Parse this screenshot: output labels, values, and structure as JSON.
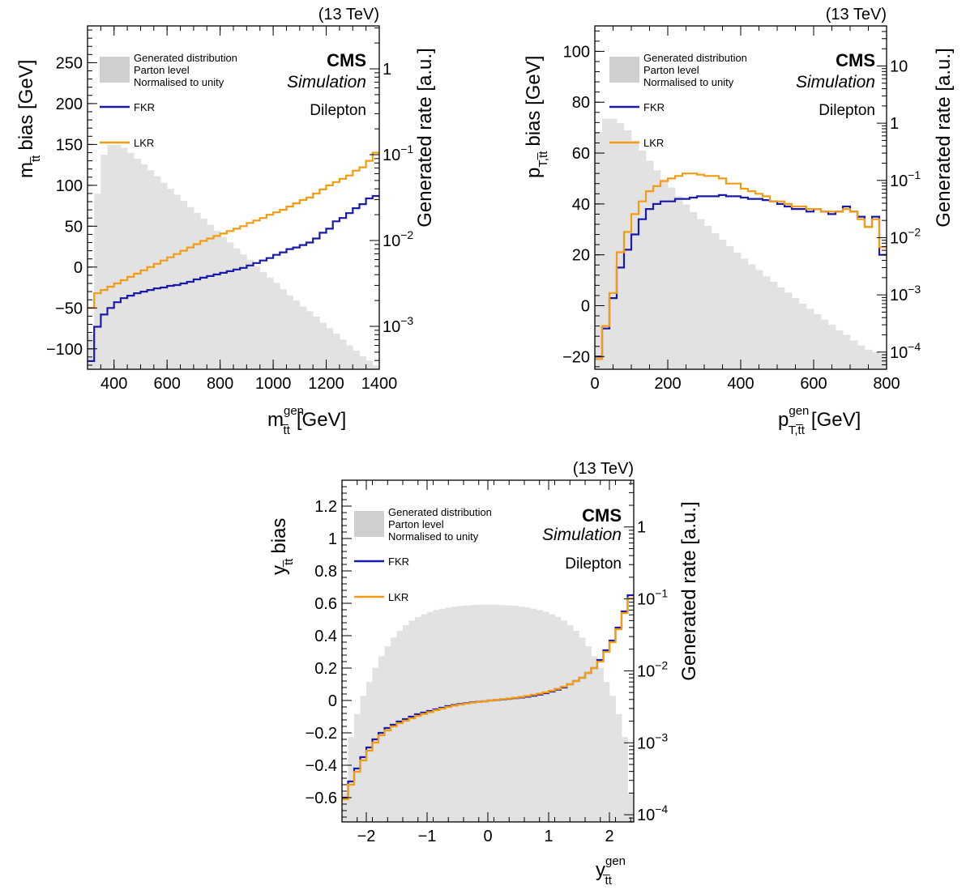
{
  "common": {
    "energy": "(13 TeV)",
    "experiment": "CMS",
    "simulation": "Simulation",
    "channel": "Dilepton",
    "right_axis_label": "Generated rate [a.u.]",
    "legend": {
      "generated": [
        "Generated distribution",
        "Parton level",
        "Normalised to unity"
      ],
      "fkr": "FKR",
      "lkr": "LKR"
    }
  },
  "colors": {
    "fkr": "#1a1aaa",
    "lkr": "#f39c12",
    "generated": "#e2e2e2",
    "legend_box": "#cfcfcf"
  },
  "chart_data": [
    {
      "type": "line",
      "name": "mtt",
      "xlabel": "m^{gen}_{t̅t} [GeV]",
      "xlabel_main": "m",
      "xlabel_sup": "gen",
      "xlabel_sub": "t̅t",
      "xlabel_unit": "[GeV]",
      "ylabel_main": "m",
      "ylabel_sub": "t̅t",
      "ylabel_rest": "bias [GeV]",
      "xlim": [
        300,
        1400
      ],
      "ylim": [
        -125,
        295
      ],
      "xticks": [
        400,
        600,
        800,
        1000,
        1200,
        1400
      ],
      "yticks": [
        -100,
        -50,
        0,
        50,
        100,
        150,
        200,
        250
      ],
      "ytick_labels": [
        "−100",
        "−50",
        "0",
        "50",
        "100",
        "150",
        "200",
        "250"
      ],
      "right_axis": {
        "log_range": [
          -3.5,
          0.5
        ],
        "ticks": [
          {
            "exp": -3,
            "label": "10",
            "sup": "−3"
          },
          {
            "exp": -2,
            "label": "10",
            "sup": "−2"
          },
          {
            "exp": -1,
            "label": "10",
            "sup": "−1"
          },
          {
            "exp": 0,
            "label": "1",
            "sup": ""
          }
        ]
      },
      "bin_edges": [
        300,
        325,
        350,
        375,
        400,
        425,
        450,
        475,
        500,
        525,
        550,
        575,
        600,
        625,
        650,
        675,
        700,
        725,
        750,
        775,
        800,
        825,
        850,
        875,
        900,
        925,
        950,
        975,
        1000,
        1025,
        1050,
        1075,
        1100,
        1125,
        1150,
        1175,
        1200,
        1225,
        1250,
        1275,
        1300,
        1325,
        1350,
        1375,
        1400
      ],
      "generated": [
        0.0008,
        0.035,
        0.1,
        0.13,
        0.13,
        0.12,
        0.105,
        0.09,
        0.077,
        0.066,
        0.056,
        0.047,
        0.04,
        0.034,
        0.029,
        0.0245,
        0.021,
        0.018,
        0.0152,
        0.013,
        0.011,
        0.0095,
        0.0081,
        0.0069,
        0.0059,
        0.005,
        0.0043,
        0.0037,
        0.0032,
        0.0027,
        0.0023,
        0.002,
        0.0017,
        0.0015,
        0.0013,
        0.0011,
        0.00095,
        0.00082,
        0.0007,
        0.0006,
        0.00052,
        0.00045,
        0.0004,
        0.00035
      ],
      "series": [
        {
          "name": "FKR",
          "values": [
            -115,
            -73,
            -58,
            -50,
            -43,
            -38,
            -35,
            -32,
            -30,
            -28,
            -26,
            -25,
            -23,
            -22,
            -20,
            -18,
            -15,
            -13,
            -11,
            -9,
            -7,
            -5,
            -3,
            -1,
            2,
            5,
            8,
            11,
            15,
            18,
            22,
            24,
            27,
            30,
            35,
            42,
            47,
            56,
            60,
            66,
            72,
            77,
            84,
            87
          ]
        },
        {
          "name": "LKR",
          "values": [
            -50,
            -32,
            -28,
            -24,
            -20,
            -16,
            -12,
            -8,
            -4,
            0,
            4,
            8,
            12,
            16,
            20,
            24,
            28,
            32,
            35,
            38,
            41,
            44,
            47,
            50,
            54,
            57,
            60,
            64,
            67,
            70,
            74,
            78,
            82,
            85,
            90,
            95,
            100,
            104,
            108,
            112,
            118,
            122,
            130,
            140
          ]
        }
      ]
    },
    {
      "type": "line",
      "name": "pt",
      "xlabel": "p^{gen}_{T,t̅t} [GeV]",
      "xlabel_main": "p",
      "xlabel_sup": "gen",
      "xlabel_sub": "T,t̅t",
      "xlabel_unit": "[GeV]",
      "ylabel_main": "p",
      "ylabel_sub": "T,t̅t",
      "ylabel_rest": "bias [GeV]",
      "xlim": [
        0,
        800
      ],
      "ylim": [
        -25,
        110
      ],
      "xticks": [
        0,
        200,
        400,
        600,
        800
      ],
      "yticks": [
        -20,
        0,
        20,
        40,
        60,
        80,
        100
      ],
      "ytick_labels": [
        "−20",
        "0",
        "20",
        "40",
        "60",
        "80",
        "100"
      ],
      "right_axis": {
        "log_range": [
          -4.3,
          1.7
        ],
        "ticks": [
          {
            "exp": -4,
            "label": "10",
            "sup": "−4"
          },
          {
            "exp": -3,
            "label": "10",
            "sup": "−3"
          },
          {
            "exp": -2,
            "label": "10",
            "sup": "−2"
          },
          {
            "exp": -1,
            "label": "10",
            "sup": "−1"
          },
          {
            "exp": 0,
            "label": "1",
            "sup": ""
          },
          {
            "exp": 1,
            "label": "10",
            "sup": ""
          }
        ]
      },
      "bin_edges": [
        0,
        20,
        40,
        60,
        80,
        100,
        120,
        140,
        160,
        180,
        200,
        220,
        240,
        260,
        280,
        300,
        320,
        340,
        360,
        380,
        400,
        420,
        440,
        460,
        480,
        500,
        520,
        540,
        560,
        580,
        600,
        620,
        640,
        660,
        680,
        700,
        720,
        740,
        760,
        780,
        800
      ],
      "generated": [
        0.7,
        1.2,
        1.2,
        1.0,
        0.75,
        0.5,
        0.33,
        0.22,
        0.15,
        0.105,
        0.075,
        0.053,
        0.038,
        0.028,
        0.021,
        0.016,
        0.012,
        0.0092,
        0.0071,
        0.0055,
        0.0043,
        0.0034,
        0.0027,
        0.0021,
        0.0017,
        0.00135,
        0.0011,
        0.00088,
        0.0007,
        0.00057,
        0.00046,
        0.00037,
        0.0003,
        0.00024,
        0.0002,
        0.00016,
        0.00013,
        0.00011,
        0.0001,
        9e-05
      ],
      "series": [
        {
          "name": "FKR",
          "values": [
            -20,
            -9,
            3,
            15,
            22,
            28,
            34,
            38,
            40,
            41,
            41,
            42,
            42,
            42.5,
            43,
            43,
            43,
            43.5,
            43,
            43,
            42.5,
            42,
            42,
            41.5,
            41,
            40,
            39,
            38,
            38,
            37,
            38,
            37,
            36,
            37,
            39,
            37,
            35,
            31,
            35,
            20
          ]
        },
        {
          "name": "LKR",
          "values": [
            -21,
            -8,
            5,
            21,
            29,
            36,
            41,
            45,
            47,
            49,
            50,
            51,
            52,
            52,
            51.5,
            51,
            51,
            50,
            48,
            48,
            46,
            45,
            44,
            43,
            41,
            41,
            40,
            39,
            39,
            38,
            38,
            37,
            37,
            37,
            38,
            37,
            34,
            31,
            34,
            23
          ]
        }
      ]
    },
    {
      "type": "line",
      "name": "y",
      "xlabel": "y^{gen}_{t̅t}",
      "xlabel_main": "y",
      "xlabel_sup": "gen",
      "xlabel_sub": "t̅t",
      "xlabel_unit": "",
      "ylabel_main": "y",
      "ylabel_sub": "t̅t",
      "ylabel_rest": "bias",
      "xlim": [
        -2.4,
        2.4
      ],
      "ylim": [
        -0.75,
        1.36
      ],
      "xticks": [
        -2,
        -1,
        0,
        1,
        2
      ],
      "xtick_labels": [
        "−2",
        "−1",
        "0",
        "1",
        "2"
      ],
      "yticks": [
        -0.6,
        -0.4,
        -0.2,
        0,
        0.2,
        0.4,
        0.6,
        0.8,
        1,
        1.2
      ],
      "ytick_labels": [
        "−0.6",
        "−0.4",
        "−0.2",
        "0",
        "0.2",
        "0.4",
        "0.6",
        "0.8",
        "1",
        "1.2"
      ],
      "right_axis": {
        "log_range": [
          -4.1,
          0.65
        ],
        "ticks": [
          {
            "exp": -4,
            "label": "10",
            "sup": "−4"
          },
          {
            "exp": -3,
            "label": "10",
            "sup": "−3"
          },
          {
            "exp": -2,
            "label": "10",
            "sup": "−2"
          },
          {
            "exp": -1,
            "label": "10",
            "sup": "−1"
          },
          {
            "exp": 0,
            "label": "1",
            "sup": ""
          }
        ]
      },
      "bin_edges": [
        -2.4,
        -2.3,
        -2.2,
        -2.1,
        -2.0,
        -1.9,
        -1.8,
        -1.7,
        -1.6,
        -1.5,
        -1.4,
        -1.3,
        -1.2,
        -1.1,
        -1.0,
        -0.9,
        -0.8,
        -0.7,
        -0.6,
        -0.5,
        -0.4,
        -0.3,
        -0.2,
        -0.1,
        0.0,
        0.1,
        0.2,
        0.3,
        0.4,
        0.5,
        0.6,
        0.7,
        0.8,
        0.9,
        1.0,
        1.1,
        1.2,
        1.3,
        1.4,
        1.5,
        1.6,
        1.7,
        1.8,
        1.9,
        2.0,
        2.1,
        2.2,
        2.3,
        2.4
      ],
      "generated": [
        0.0002,
        0.0012,
        0.0025,
        0.0045,
        0.007,
        0.011,
        0.016,
        0.022,
        0.029,
        0.036,
        0.043,
        0.05,
        0.056,
        0.061,
        0.066,
        0.07,
        0.073,
        0.076,
        0.078,
        0.08,
        0.081,
        0.082,
        0.083,
        0.083,
        0.083,
        0.083,
        0.082,
        0.081,
        0.08,
        0.078,
        0.076,
        0.073,
        0.07,
        0.066,
        0.061,
        0.056,
        0.05,
        0.043,
        0.036,
        0.029,
        0.022,
        0.016,
        0.011,
        0.007,
        0.0045,
        0.0025,
        0.0012,
        0.0002
      ],
      "series": [
        {
          "name": "FKR",
          "values": [
            -0.6,
            -0.5,
            -0.42,
            -0.35,
            -0.29,
            -0.24,
            -0.2,
            -0.17,
            -0.15,
            -0.13,
            -0.115,
            -0.1,
            -0.085,
            -0.075,
            -0.065,
            -0.055,
            -0.045,
            -0.035,
            -0.028,
            -0.022,
            -0.017,
            -0.012,
            -0.008,
            -0.005,
            0.0,
            0.003,
            0.006,
            0.01,
            0.014,
            0.018,
            0.023,
            0.029,
            0.036,
            0.045,
            0.055,
            0.067,
            0.08,
            0.1,
            0.12,
            0.14,
            0.17,
            0.2,
            0.25,
            0.31,
            0.37,
            0.45,
            0.55,
            0.65
          ]
        },
        {
          "name": "LKR",
          "values": [
            -0.61,
            -0.52,
            -0.44,
            -0.37,
            -0.31,
            -0.26,
            -0.215,
            -0.185,
            -0.16,
            -0.14,
            -0.125,
            -0.11,
            -0.095,
            -0.083,
            -0.072,
            -0.06,
            -0.05,
            -0.04,
            -0.032,
            -0.025,
            -0.019,
            -0.014,
            -0.009,
            -0.005,
            0.0,
            0.004,
            0.008,
            0.012,
            0.017,
            0.022,
            0.028,
            0.035,
            0.042,
            0.05,
            0.06,
            0.072,
            0.085,
            0.1,
            0.12,
            0.14,
            0.17,
            0.2,
            0.24,
            0.3,
            0.36,
            0.44,
            0.54,
            0.63
          ]
        }
      ]
    }
  ]
}
